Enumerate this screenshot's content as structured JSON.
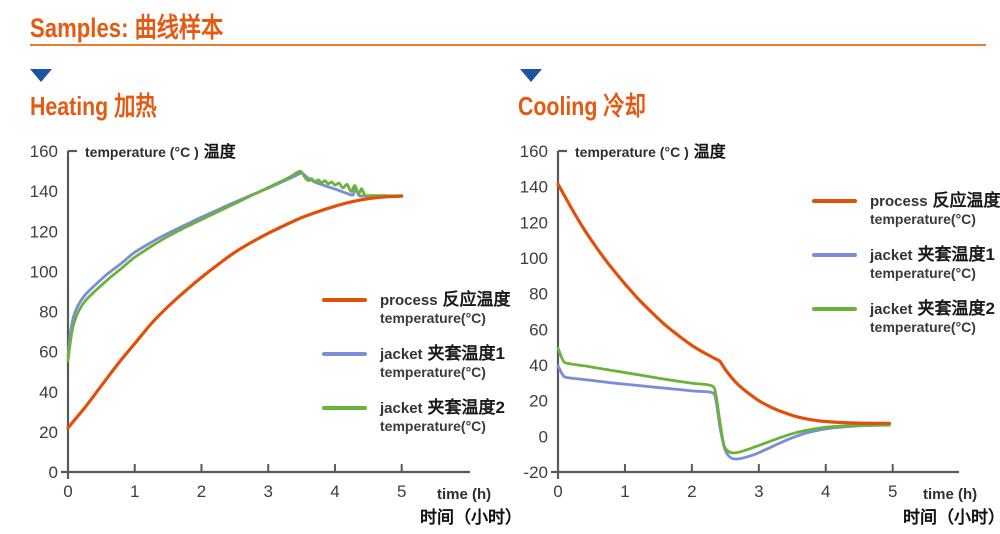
{
  "header": {
    "title": "Samples: 曲线样本"
  },
  "sections": {
    "heating": {
      "heading": "Heating 加热"
    },
    "cooling": {
      "heading": "Cooling 冷却"
    }
  },
  "axis_labels": {
    "y_en": "temperature (°C )",
    "y_cn": "温度",
    "x_en": "time (h)",
    "x_cn": "时间（小时）"
  },
  "legend": [
    {
      "en": "process",
      "cn": "反应温度",
      "sub": "temperature(°C)",
      "color": "#e0500a"
    },
    {
      "en": "jacket",
      "cn": "夹套温度1",
      "sub": "temperature(°C)",
      "color": "#7b8cd9"
    },
    {
      "en": "jacket",
      "cn": "夹套温度2",
      "sub": "temperature(°C)",
      "color": "#6bb23d"
    }
  ],
  "colors": {
    "accent_orange": "#e55a12",
    "marker_blue": "#1d54a0",
    "axis_gray": "#58595b",
    "tick_label": "#3d3d3d"
  },
  "chart_data": [
    {
      "type": "line",
      "title": "Heating 加热",
      "xlabel": "time (h) 时间（小时）",
      "ylabel": "temperature (°C ) 温度",
      "xlim": [
        0,
        5
      ],
      "ylim": [
        0,
        160
      ],
      "xticks": [
        0,
        1,
        2,
        3,
        4,
        5
      ],
      "yticks": [
        0,
        20,
        40,
        60,
        80,
        100,
        120,
        140,
        160
      ],
      "grid": false,
      "legend_position": "right-center",
      "series": [
        {
          "name": "process 反应温度 temperature(°C)",
          "color": "#e0500a",
          "points": [
            [
              0,
              22
            ],
            [
              0.25,
              32
            ],
            [
              0.5,
              43
            ],
            [
              0.75,
              54
            ],
            [
              1,
              64
            ],
            [
              1.25,
              74
            ],
            [
              1.5,
              82.5
            ],
            [
              1.75,
              90
            ],
            [
              2,
              97
            ],
            [
              2.25,
              103.5
            ],
            [
              2.5,
              109.5
            ],
            [
              2.75,
              114.5
            ],
            [
              3,
              119
            ],
            [
              3.25,
              123
            ],
            [
              3.5,
              126.8
            ],
            [
              3.75,
              129.8
            ],
            [
              4,
              132.5
            ],
            [
              4.25,
              134.7
            ],
            [
              4.5,
              136.2
            ],
            [
              4.75,
              137.1
            ],
            [
              5,
              137.5
            ]
          ]
        },
        {
          "name": "jacket 夹套温度1 temperature(°C)",
          "color": "#7b8cd9",
          "points": [
            [
              0,
              58
            ],
            [
              0.04,
              70
            ],
            [
              0.08,
              77
            ],
            [
              0.15,
              83
            ],
            [
              0.25,
              88
            ],
            [
              0.4,
              93
            ],
            [
              0.6,
              99
            ],
            [
              0.8,
              104
            ],
            [
              1,
              109.5
            ],
            [
              1.25,
              114.5
            ],
            [
              1.5,
              119
            ],
            [
              1.75,
              123
            ],
            [
              2,
              127
            ],
            [
              2.25,
              130.8
            ],
            [
              2.5,
              134.5
            ],
            [
              2.75,
              138
            ],
            [
              3,
              141.5
            ],
            [
              3.2,
              144.5
            ],
            [
              3.4,
              147.5
            ],
            [
              3.5,
              149
            ],
            [
              3.58,
              147
            ],
            [
              3.7,
              144.5
            ],
            [
              3.85,
              142.7
            ],
            [
              4,
              141
            ],
            [
              4.1,
              139.8
            ],
            [
              4.2,
              138.6
            ],
            [
              4.27,
              138.1
            ],
            [
              4.31,
              141.5
            ],
            [
              4.36,
              137.8
            ],
            [
              4.45,
              137.6
            ],
            [
              4.7,
              137.5
            ],
            [
              5,
              137.5
            ]
          ]
        },
        {
          "name": "jacket 夹套温度2 temperature(°C)",
          "color": "#6bb23d",
          "points": [
            [
              0,
              55.5
            ],
            [
              0.04,
              66
            ],
            [
              0.08,
              73
            ],
            [
              0.15,
              79.5
            ],
            [
              0.25,
              85
            ],
            [
              0.4,
              90
            ],
            [
              0.6,
              96
            ],
            [
              0.8,
              101.5
            ],
            [
              1,
              107
            ],
            [
              1.25,
              112.5
            ],
            [
              1.5,
              117.5
            ],
            [
              1.75,
              121.8
            ],
            [
              2,
              125.8
            ],
            [
              2.25,
              129.8
            ],
            [
              2.5,
              133.8
            ],
            [
              2.75,
              137.8
            ],
            [
              3,
              141.8
            ],
            [
              3.2,
              145
            ],
            [
              3.35,
              147.5
            ],
            [
              3.48,
              150
            ],
            [
              3.56,
              146.3
            ],
            [
              3.61,
              145.2
            ],
            [
              3.65,
              146.2
            ],
            [
              3.7,
              144.6
            ],
            [
              3.75,
              145.6
            ],
            [
              3.8,
              144.2
            ],
            [
              3.85,
              145.2
            ],
            [
              3.9,
              143.6
            ],
            [
              3.95,
              144.6
            ],
            [
              4,
              143
            ],
            [
              4.06,
              144
            ],
            [
              4.12,
              141.6
            ],
            [
              4.18,
              143.4
            ],
            [
              4.24,
              139.8
            ],
            [
              4.3,
              142.8
            ],
            [
              4.35,
              138.4
            ],
            [
              4.4,
              141.2
            ],
            [
              4.45,
              137.9
            ],
            [
              4.55,
              137.8
            ],
            [
              4.75,
              137.7
            ],
            [
              5,
              137.7
            ]
          ]
        }
      ]
    },
    {
      "type": "line",
      "title": "Cooling 冷却",
      "xlabel": "time (h) 时间（小时）",
      "ylabel": "temperature (°C ) 温度",
      "xlim": [
        0,
        5
      ],
      "ylim": [
        -20,
        160
      ],
      "xticks": [
        0,
        1,
        2,
        3,
        4,
        5
      ],
      "yticks": [
        -20,
        0,
        20,
        40,
        60,
        80,
        100,
        120,
        140,
        160
      ],
      "grid": false,
      "legend_position": "right-top",
      "series": [
        {
          "name": "process 反应温度 temperature(°C)",
          "color": "#e0500a",
          "points": [
            [
              0,
              141.5
            ],
            [
              0.2,
              128
            ],
            [
              0.4,
              115.5
            ],
            [
              0.6,
              104.5
            ],
            [
              0.8,
              94.5
            ],
            [
              1,
              85.5
            ],
            [
              1.2,
              77
            ],
            [
              1.4,
              69.5
            ],
            [
              1.6,
              62.5
            ],
            [
              1.8,
              56.5
            ],
            [
              2,
              51
            ],
            [
              2.2,
              46.5
            ],
            [
              2.35,
              43.5
            ],
            [
              2.42,
              42
            ],
            [
              2.5,
              37.5
            ],
            [
              2.65,
              30.5
            ],
            [
              2.8,
              25.5
            ],
            [
              3,
              20
            ],
            [
              3.2,
              16
            ],
            [
              3.4,
              13
            ],
            [
              3.6,
              10.7
            ],
            [
              3.8,
              9.2
            ],
            [
              4,
              8.3
            ],
            [
              4.25,
              7.7
            ],
            [
              4.5,
              7.4
            ],
            [
              4.75,
              7.3
            ],
            [
              4.95,
              7.3
            ]
          ]
        },
        {
          "name": "jacket 夹套温度1 temperature(°C)",
          "color": "#7b8cd9",
          "points": [
            [
              0,
              39.5
            ],
            [
              0.07,
              34.5
            ],
            [
              0.13,
              33
            ],
            [
              0.4,
              31.8
            ],
            [
              0.8,
              30
            ],
            [
              1.2,
              28.5
            ],
            [
              1.6,
              27
            ],
            [
              2,
              25.5
            ],
            [
              2.3,
              24.5
            ],
            [
              2.36,
              20
            ],
            [
              2.42,
              5
            ],
            [
              2.5,
              -8
            ],
            [
              2.58,
              -12
            ],
            [
              2.66,
              -12.7
            ],
            [
              2.78,
              -12
            ],
            [
              2.95,
              -10
            ],
            [
              3.1,
              -7.5
            ],
            [
              3.3,
              -4
            ],
            [
              3.5,
              -0.8
            ],
            [
              3.7,
              1.8
            ],
            [
              3.9,
              3.5
            ],
            [
              4.1,
              4.7
            ],
            [
              4.35,
              5.5
            ],
            [
              4.6,
              6
            ],
            [
              4.95,
              6.3
            ]
          ]
        },
        {
          "name": "jacket 夹套温度2 temperature(°C)",
          "color": "#6bb23d",
          "points": [
            [
              0,
              49.5
            ],
            [
              0.07,
              43
            ],
            [
              0.13,
              41
            ],
            [
              0.4,
              39.5
            ],
            [
              0.8,
              37
            ],
            [
              1.2,
              34.5
            ],
            [
              1.6,
              32
            ],
            [
              2,
              29.8
            ],
            [
              2.3,
              28.3
            ],
            [
              2.36,
              23
            ],
            [
              2.42,
              8
            ],
            [
              2.48,
              -5
            ],
            [
              2.55,
              -8.5
            ],
            [
              2.62,
              -9.3
            ],
            [
              2.72,
              -8.7
            ],
            [
              2.9,
              -6.5
            ],
            [
              3.1,
              -3.8
            ],
            [
              3.3,
              -1
            ],
            [
              3.5,
              1.5
            ],
            [
              3.7,
              3.3
            ],
            [
              3.9,
              4.6
            ],
            [
              4.1,
              5.4
            ],
            [
              4.35,
              5.9
            ],
            [
              4.6,
              6.2
            ],
            [
              4.95,
              6.4
            ]
          ]
        }
      ]
    }
  ]
}
